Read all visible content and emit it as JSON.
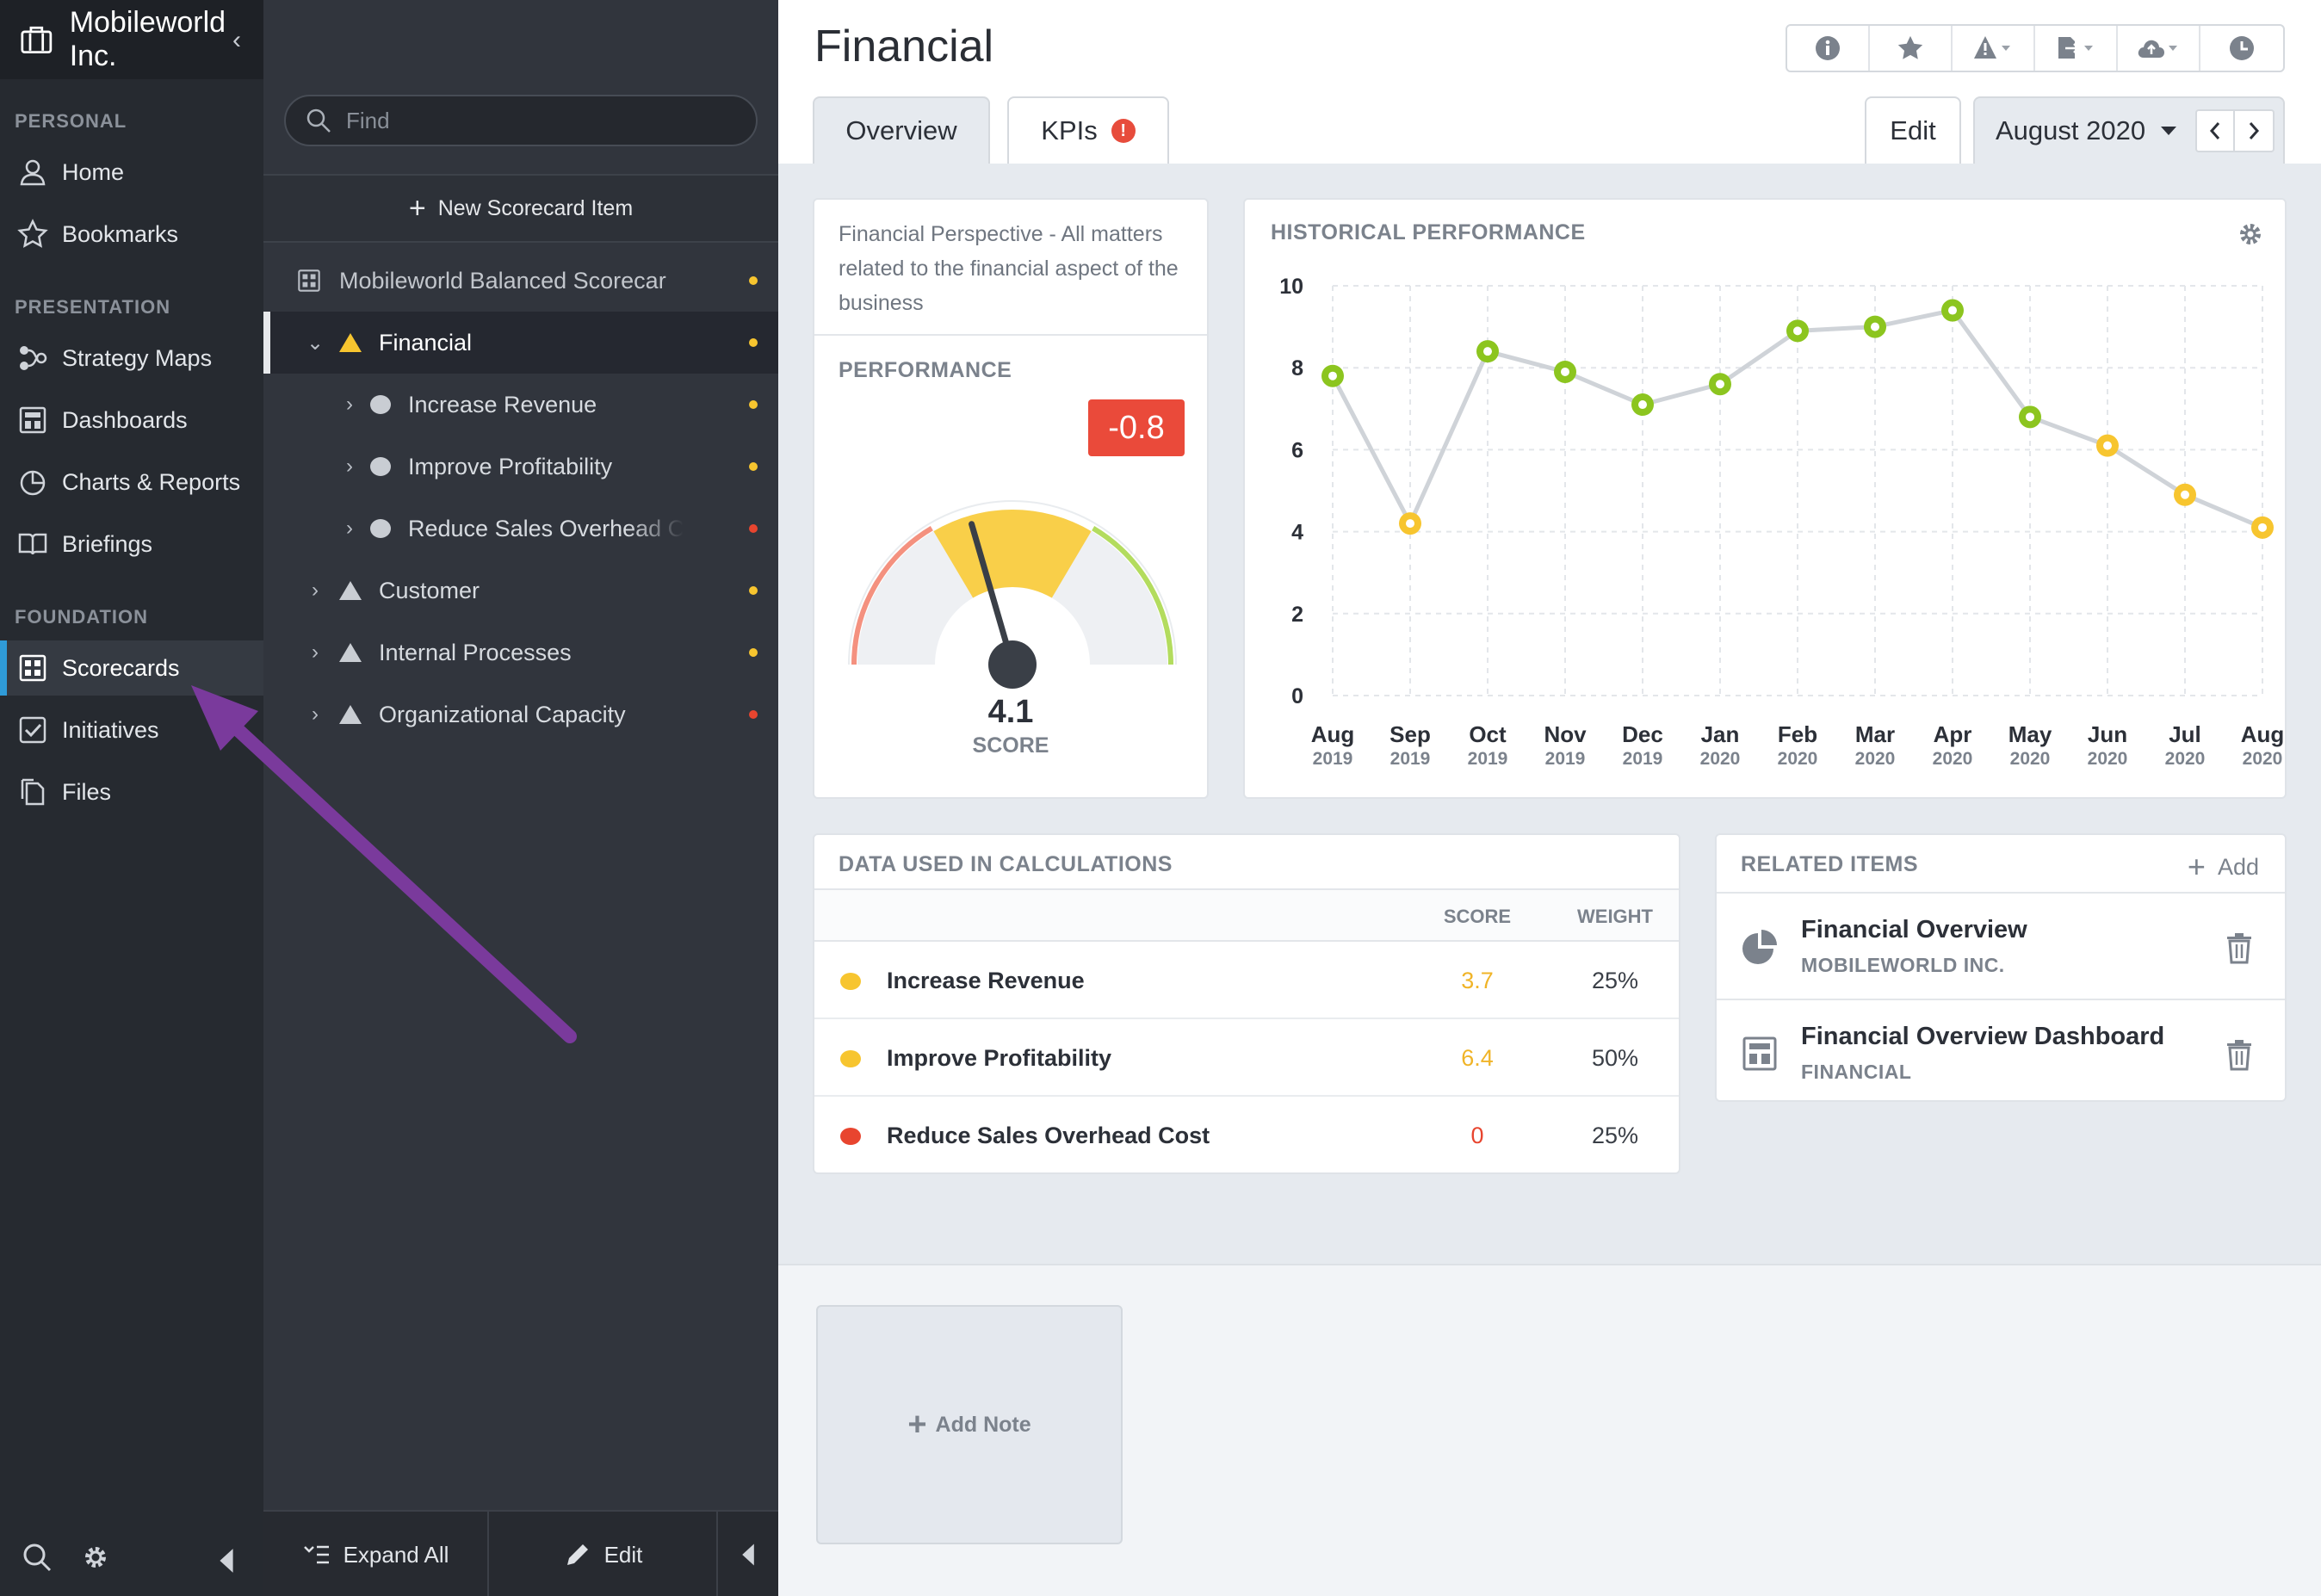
{
  "nav": {
    "org_name": "Mobileworld Inc.",
    "sections": {
      "personal": "PERSONAL",
      "presentation": "PRESENTATION",
      "foundation": "FOUNDATION"
    },
    "items": {
      "home": "Home",
      "bookmarks": "Bookmarks",
      "strategy_maps": "Strategy Maps",
      "dashboards": "Dashboards",
      "charts_reports": "Charts & Reports",
      "briefings": "Briefings",
      "scorecards": "Scorecards",
      "initiatives": "Initiatives",
      "files": "Files"
    },
    "active_item": "Scorecards"
  },
  "tree": {
    "search_placeholder": "Find",
    "new_item_label": "New Scorecard Item",
    "rows": [
      {
        "label": "Mobileworld Balanced Scorecard",
        "status": "yellow"
      },
      {
        "label": "Financial",
        "status": "yellow",
        "selected": true
      },
      {
        "label": "Increase Revenue",
        "status": "yellow"
      },
      {
        "label": "Improve Profitability",
        "status": "yellow"
      },
      {
        "label": "Reduce Sales Overhead Cost",
        "status": "red"
      },
      {
        "label": "Customer",
        "status": "yellow"
      },
      {
        "label": "Internal Processes",
        "status": "yellow"
      },
      {
        "label": "Organizational Capacity",
        "status": "red"
      }
    ],
    "expand_all_label": "Expand All",
    "edit_label": "Edit"
  },
  "main": {
    "title": "Financial",
    "tabs": [
      {
        "label": "Overview",
        "active": true
      },
      {
        "label": "KPIs",
        "alert": "!"
      }
    ],
    "edit_label": "Edit",
    "period": "August 2020",
    "description": "Financial Perspective - All matters related to the financial aspect of the business",
    "performance": {
      "title": "PERFORMANCE",
      "change": "-0.8",
      "score": "4.1",
      "score_label": "SCORE",
      "gauge_value": 4.1,
      "gauge_max": 10
    },
    "history": {
      "title": "HISTORICAL PERFORMANCE"
    },
    "calc": {
      "title": "DATA USED IN CALCULATIONS",
      "col_score": "SCORE",
      "col_weight": "WEIGHT",
      "rows": [
        {
          "name": "Increase Revenue",
          "score": "3.7",
          "weight": "25%",
          "status": "yellow"
        },
        {
          "name": "Improve Profitability",
          "score": "6.4",
          "weight": "50%",
          "status": "yellow"
        },
        {
          "name": "Reduce Sales Overhead Cost",
          "score": "0",
          "weight": "25%",
          "status": "red"
        }
      ]
    },
    "related": {
      "title": "RELATED ITEMS",
      "add_label": "Add",
      "items": [
        {
          "name": "Financial Overview",
          "sub": "MOBILEWORLD INC.",
          "icon": "pie-chart-icon"
        },
        {
          "name": "Financial Overview Dashboard",
          "sub": "FINANCIAL",
          "icon": "dashboard-icon"
        }
      ]
    },
    "add_note_label": "Add Note"
  },
  "colors": {
    "yellow": "#f7c52f",
    "red": "#e8452f",
    "green": "#8cc51f",
    "accent": "#2f9bd8",
    "annotation_arrow": "#7a3a9c"
  },
  "chart_data": {
    "type": "line",
    "title": "HISTORICAL PERFORMANCE",
    "x": [
      "Aug 2019",
      "Sep 2019",
      "Oct 2019",
      "Nov 2019",
      "Dec 2019",
      "Jan 2020",
      "Feb 2020",
      "Mar 2020",
      "Apr 2020",
      "May 2020",
      "Jun 2020",
      "Jul 2020",
      "Aug 2020"
    ],
    "x_months": [
      "Aug",
      "Sep",
      "Oct",
      "Nov",
      "Dec",
      "Jan",
      "Feb",
      "Mar",
      "Apr",
      "May",
      "Jun",
      "Jul",
      "Aug"
    ],
    "x_years": [
      "2019",
      "2019",
      "2019",
      "2019",
      "2019",
      "2020",
      "2020",
      "2020",
      "2020",
      "2020",
      "2020",
      "2020",
      "2020"
    ],
    "series": [
      {
        "values": [
          7.8,
          4.2,
          8.4,
          7.9,
          7.1,
          7.6,
          8.9,
          9.0,
          9.4,
          6.8,
          6.1,
          4.9,
          4.1
        ],
        "status": [
          "green",
          "yellow",
          "green",
          "green",
          "green",
          "green",
          "green",
          "green",
          "green",
          "green",
          "yellow",
          "yellow",
          "yellow"
        ]
      }
    ],
    "ylim": [
      0,
      10
    ],
    "yticks": [
      0,
      2,
      4,
      6,
      8,
      10
    ],
    "grid": true
  }
}
